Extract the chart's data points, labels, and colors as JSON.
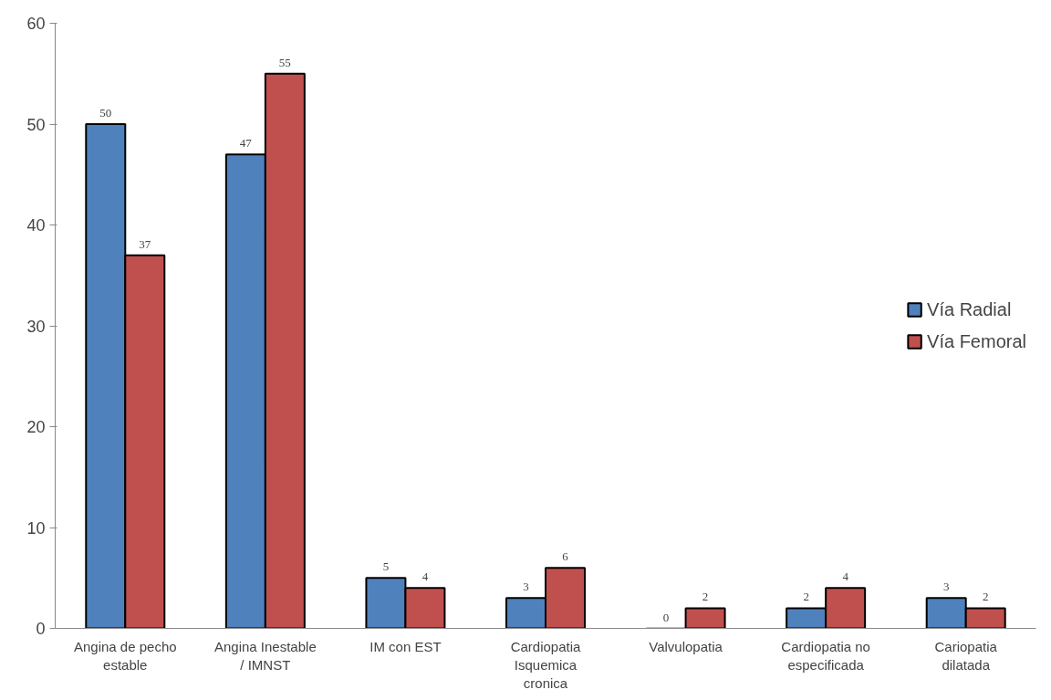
{
  "chart_data": {
    "type": "bar",
    "categories": [
      "Angina de pecho estable",
      "Angina Inestable / IMNST",
      "IM con EST",
      "Cardiopatia Isquemica cronica",
      "Valvulopatia",
      "Cardiopatia no especificada",
      "Cariopatia dilatada"
    ],
    "series": [
      {
        "name": "Vía Radial",
        "color": "#4f81bd",
        "values": [
          50,
          47,
          5,
          3,
          0,
          2,
          3
        ]
      },
      {
        "name": "Vía Femoral",
        "color": "#c0504d",
        "values": [
          37,
          55,
          4,
          6,
          2,
          4,
          2
        ]
      }
    ],
    "ylim": [
      0,
      60
    ],
    "yticks": [
      0,
      10,
      20,
      30,
      40,
      50,
      60
    ],
    "grid": false,
    "legend": "right",
    "data_labels": true
  }
}
